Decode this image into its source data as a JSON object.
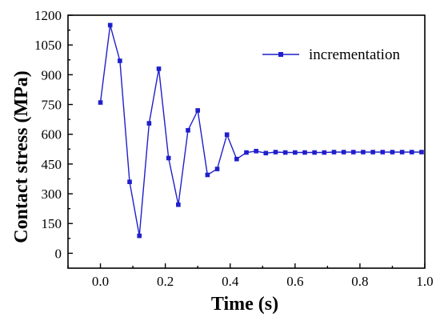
{
  "chart_data": {
    "type": "line",
    "xlabel": "Time (s)",
    "ylabel": "Contact stress  (MPa)",
    "xlim": [
      -0.1,
      1.0
    ],
    "ylim": [
      -75,
      1200
    ],
    "xticks": [
      0.0,
      0.2,
      0.4,
      0.6,
      0.8,
      1.0
    ],
    "xtick_labels": [
      "0.0",
      "0.2",
      "0.4",
      "0.6",
      "0.8",
      "1.0"
    ],
    "yticks": [
      0,
      150,
      300,
      450,
      600,
      750,
      900,
      1050,
      1200
    ],
    "ytick_labels": [
      "0",
      "150",
      "300",
      "450",
      "600",
      "750",
      "900",
      "1050",
      "1200"
    ],
    "grid": false,
    "legend_position": "top-right",
    "series": [
      {
        "name": "incrementation",
        "color": "#1f1fcc",
        "marker": "square",
        "x": [
          0.0,
          0.03,
          0.06,
          0.09,
          0.12,
          0.15,
          0.18,
          0.21,
          0.24,
          0.27,
          0.3,
          0.33,
          0.36,
          0.39,
          0.42,
          0.45,
          0.48,
          0.51,
          0.54,
          0.57,
          0.6,
          0.63,
          0.66,
          0.69,
          0.72,
          0.75,
          0.78,
          0.81,
          0.84,
          0.87,
          0.9,
          0.93,
          0.96,
          0.99
        ],
        "y": [
          760,
          1150,
          970,
          360,
          88,
          655,
          930,
          480,
          245,
          620,
          720,
          395,
          425,
          598,
          475,
          508,
          515,
          505,
          510,
          508,
          508,
          508,
          508,
          508,
          510,
          510,
          510,
          510,
          510,
          510,
          510,
          510,
          510,
          510
        ]
      }
    ]
  }
}
